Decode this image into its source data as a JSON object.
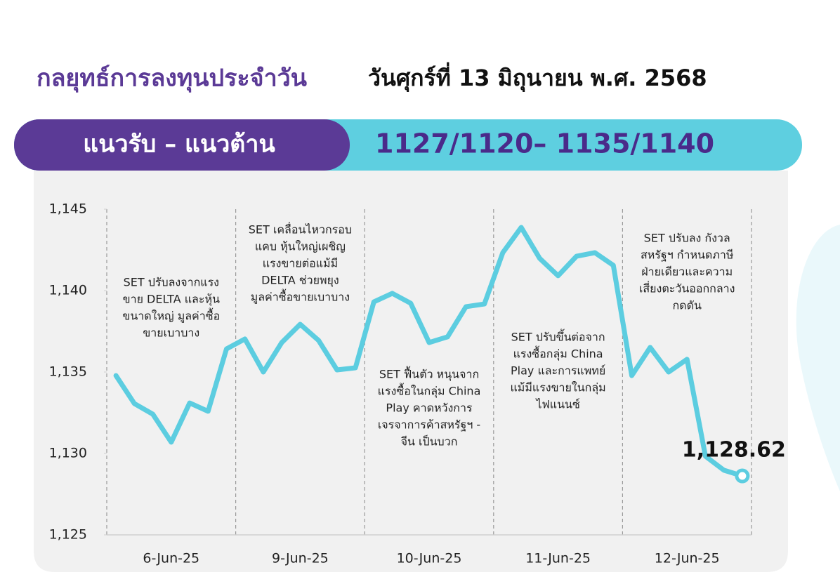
{
  "header": {
    "title": "กลยุทธ์การลงทุนประจำวัน",
    "date": "วันศุกร์ที่ 13 มิถุนายน พ.ศ. 2568"
  },
  "levels": {
    "label": "แนวรับ – แนวต้าน",
    "value": "1127/1120– 1135/1140"
  },
  "chart_data": {
    "type": "line",
    "categories": [
      null,
      null,
      null,
      "6-Jun-25",
      null,
      null,
      null,
      null,
      null,
      null,
      "9-Jun-25",
      null,
      null,
      null,
      null,
      null,
      null,
      "10-Jun-25",
      null,
      null,
      null,
      null,
      null,
      null,
      "11-Jun-25",
      null,
      null,
      null,
      null,
      null,
      null,
      "12-Jun-25",
      null,
      null,
      null
    ],
    "values": [
      1134.78,
      1133.06,
      1132.41,
      1130.69,
      1133.1,
      1132.59,
      1136.42,
      1137.03,
      1135.0,
      1136.81,
      1137.93,
      1136.94,
      1135.13,
      1135.26,
      1139.31,
      1139.83,
      1139.22,
      1136.81,
      1137.16,
      1139.01,
      1139.18,
      1142.33,
      1143.88,
      1141.98,
      1140.91,
      1142.11,
      1142.33,
      1141.55,
      1134.78,
      1136.51,
      1135.0,
      1135.78,
      1129.83,
      1128.97,
      1128.62
    ],
    "value_labels": [
      null,
      null,
      null,
      null,
      null,
      null,
      null,
      null,
      null,
      null,
      null,
      null,
      null,
      null,
      null,
      null,
      null,
      null,
      null,
      null,
      null,
      null,
      null,
      null,
      null,
      null,
      null,
      null,
      null,
      null,
      null,
      null,
      null,
      null,
      "1,128.62"
    ],
    "color": "#5ccde0",
    "ylim": [
      1125,
      1145
    ],
    "yticks": [
      {
        "value": 1125,
        "label": "1,125"
      },
      {
        "value": 1130,
        "label": "1,130"
      },
      {
        "value": 1135,
        "label": "1,135"
      },
      {
        "value": 1140,
        "label": "1,140"
      },
      {
        "value": 1145,
        "label": "1,145"
      }
    ],
    "annotations": [
      [
        "SET ปรับลงจากแรง",
        "ขาย DELTA และหุ้น",
        "ขนาดใหญ่ มูลค่าซื้อ",
        "ขายเบาบาง"
      ],
      [
        "SET เคลื่อนไหวกรอบ",
        "แคบ หุ้นใหญ่เผชิญ",
        "แรงขายต่อแม้มี",
        "DELTA ช่วยพยุง",
        "มูลค่าซื้อขายเบาบาง"
      ],
      [
        "SET ฟื้นตัว หนุนจาก",
        "แรงซื้อในกลุ่ม China",
        "Play คาดหวังการ",
        "เจรจาการค้าสหรัฐฯ -",
        "จีน เป็นบวก"
      ],
      [
        "SET ปรับขึ้นต่อจาก",
        "แรงซื้อกลุ่ม China",
        "Play และการแพทย์",
        "แม้มีแรงขายในกลุ่ม",
        "ไฟแนนซ์"
      ],
      [
        "SET ปรับลง กังวล",
        "สหรัฐฯ กำหนดภาษี",
        "ฝ่ายเดียวและความ",
        "เสี่ยงตะวันออกกลาง",
        "กดดัน"
      ]
    ]
  }
}
